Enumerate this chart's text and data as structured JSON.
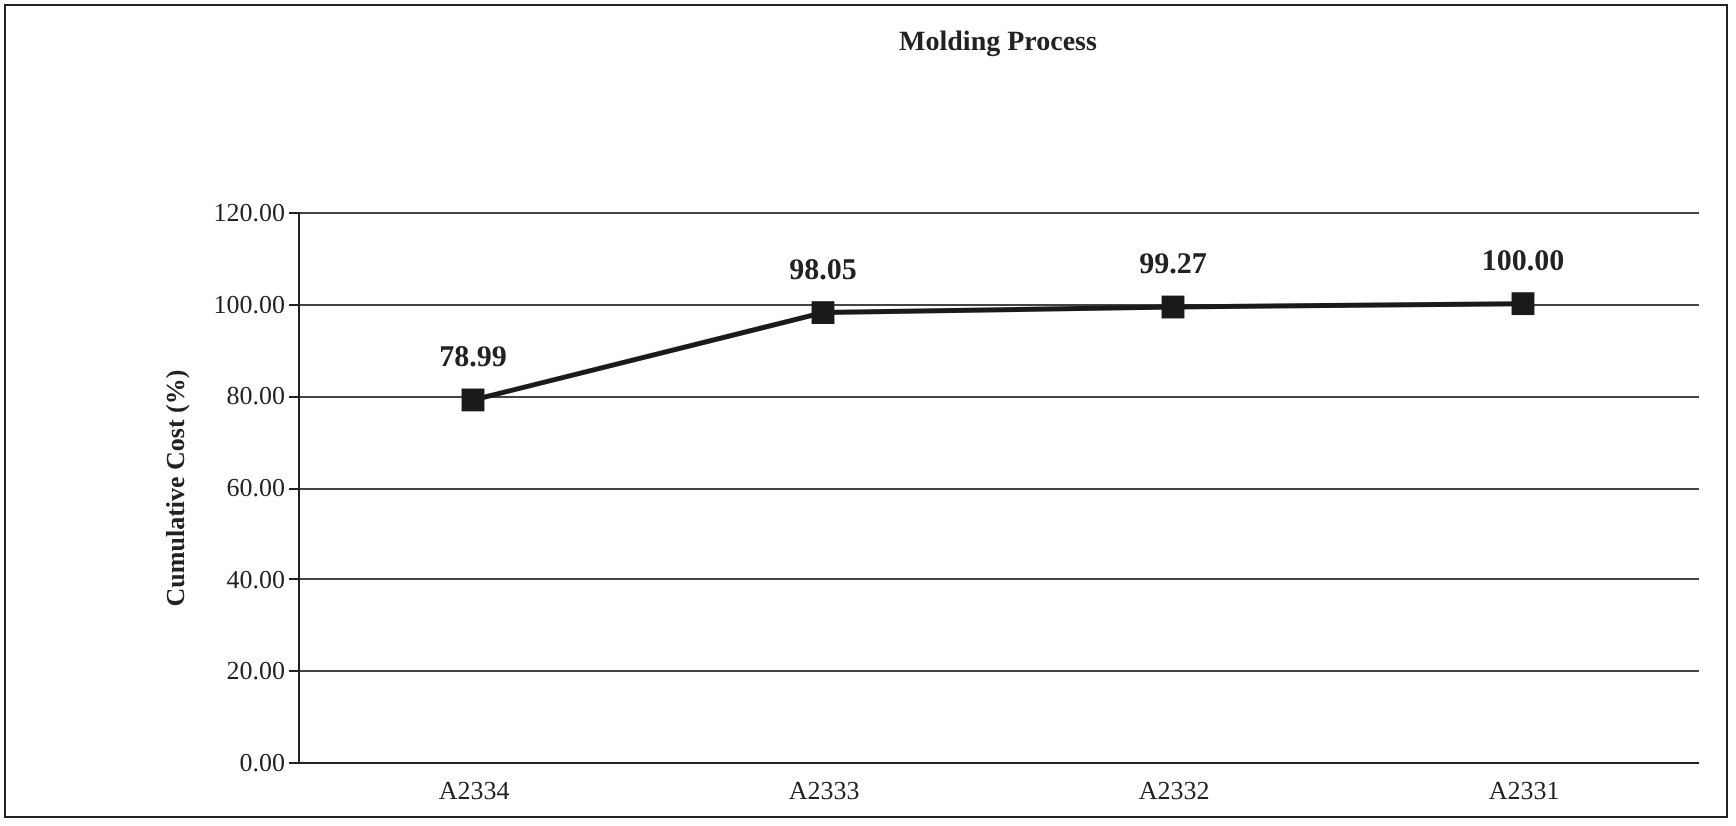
{
  "chart_data": {
    "type": "line",
    "title": "Molding Process",
    "ylabel": "Cumulative Cost (%)",
    "categories": [
      "A2334",
      "A2333",
      "A2332",
      "A2331"
    ],
    "series": [
      {
        "color": "#1a1a1a",
        "values": [
          78.99,
          98.05,
          99.27,
          100.0
        ],
        "value_labels": [
          "78.99",
          "98.05",
          "99.27",
          "100.00"
        ]
      }
    ],
    "ylim": [
      0,
      120
    ],
    "yticks": [
      {
        "value": 0,
        "label": "0.00"
      },
      {
        "value": 20,
        "label": "20.00"
      },
      {
        "value": 40,
        "label": "40.00"
      },
      {
        "value": 60,
        "label": "60.00"
      },
      {
        "value": 80,
        "label": "80.00"
      },
      {
        "value": 100,
        "label": "100.00"
      },
      {
        "value": 120,
        "label": "120.00"
      }
    ],
    "grid": "y",
    "marker": "square",
    "line_style": "solid",
    "legend": false
  }
}
